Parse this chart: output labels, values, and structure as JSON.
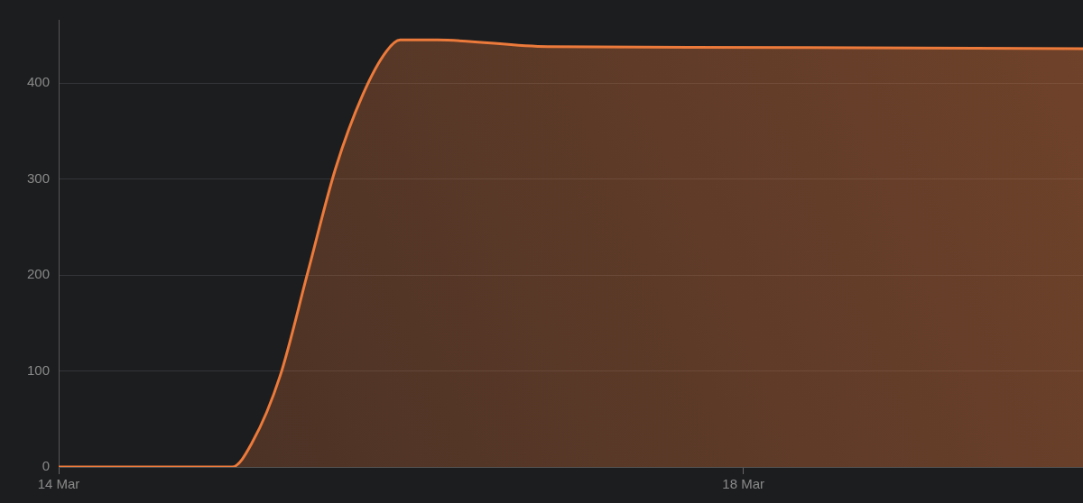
{
  "chart_data": {
    "type": "area",
    "x": [
      "--03-14T00:00",
      "--03-15T00:19",
      "--03-15T03:10",
      "--03-15T07:03",
      "--03-15T10:56",
      "--03-15T14:49",
      "--03-15T18:42",
      "--03-15T21:56",
      "--03-15T23:53",
      "--03-16T05:03",
      "--03-16T20:34",
      "--03-18T08:48",
      "--03-19T23:37"
    ],
    "series": [
      {
        "color": "#ec7a3b",
        "values": [
          0,
          0,
          26,
          95,
          203,
          311,
          389,
          433,
          445,
          445,
          438,
          437,
          436
        ]
      }
    ],
    "xlim": [
      "--03-14T00:00",
      "--03-19T23:37"
    ],
    "xticks": [
      {
        "value": "--03-14",
        "label": "14 Mar"
      },
      {
        "value": "--03-18",
        "label": "18 Mar"
      }
    ],
    "ylim": [
      0,
      466
    ],
    "yticks": [
      0,
      100,
      200,
      300,
      400
    ],
    "grid": "y",
    "legend": false,
    "marker": "none",
    "line_style": "solid"
  }
}
